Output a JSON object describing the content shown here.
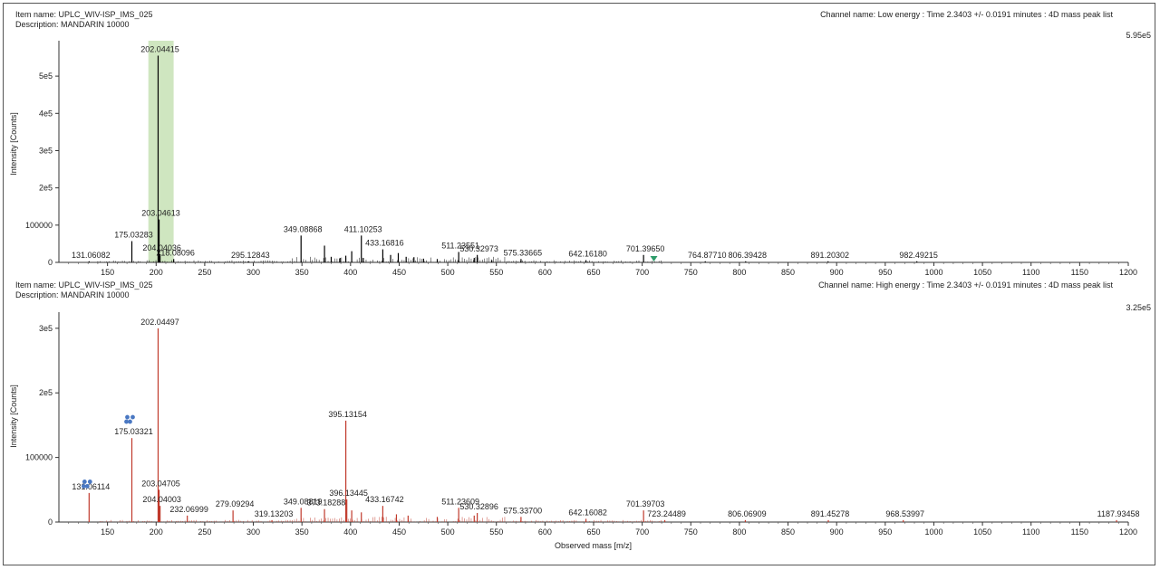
{
  "panels": [
    {
      "item_name": "Item name: UPLC_WIV-ISP_IMS_025",
      "description": "Description: MANDARIN 10000",
      "channel": "Channel name: Low energy : Time 2.3403 +/- 0.0191 minutes : 4D mass peak list",
      "scale": "5.95e5",
      "ylabel": "Intensity [Counts]"
    },
    {
      "item_name": "Item name: UPLC_WIV-ISP_IMS_025",
      "description": "Description: MANDARIN 10000",
      "channel": "Channel name: High energy : Time 2.3403 +/- 0.0191 minutes : 4D mass peak list",
      "scale": "3.25e5",
      "ylabel": "Intensity [Counts]",
      "xlabel": "Observed mass [m/z]"
    }
  ],
  "chart_data": [
    {
      "type": "bar",
      "channel": "Low energy",
      "color": "#000000",
      "xlim": [
        100,
        1200
      ],
      "ylim": [
        0,
        595000
      ],
      "x_ticks": [
        150,
        200,
        250,
        300,
        350,
        400,
        450,
        500,
        550,
        600,
        650,
        700,
        750,
        800,
        850,
        900,
        950,
        1000,
        1050,
        1100,
        1150,
        1200
      ],
      "y_ticks": [
        {
          "value": 0,
          "label": "0"
        },
        {
          "value": 100000,
          "label": "100000"
        },
        {
          "value": 200000,
          "label": "2e5"
        },
        {
          "value": 300000,
          "label": "3e5"
        },
        {
          "value": 400000,
          "label": "4e5"
        },
        {
          "value": 500000,
          "label": "5e5"
        }
      ],
      "highlight_range": [
        192,
        218
      ],
      "highlight_color": "#cfe6c0",
      "marker": {
        "x": 712,
        "color": "#2e9c6a"
      },
      "peaks": [
        {
          "x": 131.06082,
          "y": 3000,
          "label": "131.06082"
        },
        {
          "x": 175.03283,
          "y": 57000,
          "label": "175.03283"
        },
        {
          "x": 202.04415,
          "y": 555000,
          "label": "202.04415"
        },
        {
          "x": 203.04613,
          "y": 115000,
          "label": "203.04613"
        },
        {
          "x": 204.04036,
          "y": 22000,
          "label": "204.04036"
        },
        {
          "x": 218.08096,
          "y": 9000,
          "label": "218.08096"
        },
        {
          "x": 295.12843,
          "y": 3000,
          "label": "295.12843"
        },
        {
          "x": 349.08868,
          "y": 72000,
          "label": "349.08868"
        },
        {
          "x": 373.2,
          "y": 45000
        },
        {
          "x": 380.1,
          "y": 15000
        },
        {
          "x": 389.2,
          "y": 12000
        },
        {
          "x": 395.1,
          "y": 18000
        },
        {
          "x": 401.2,
          "y": 30000
        },
        {
          "x": 411.10253,
          "y": 72000,
          "label": "411.10253"
        },
        {
          "x": 413.1,
          "y": 12000
        },
        {
          "x": 433.16816,
          "y": 35000,
          "label": "433.16816"
        },
        {
          "x": 441.2,
          "y": 20000
        },
        {
          "x": 449.1,
          "y": 25000
        },
        {
          "x": 457.2,
          "y": 15000
        },
        {
          "x": 465.2,
          "y": 14000
        },
        {
          "x": 475.1,
          "y": 10000
        },
        {
          "x": 489.2,
          "y": 9000
        },
        {
          "x": 511.23551,
          "y": 28000,
          "label": "511.23551"
        },
        {
          "x": 527.2,
          "y": 12000
        },
        {
          "x": 530.32973,
          "y": 20000,
          "label": "530.32973"
        },
        {
          "x": 545.3,
          "y": 6000
        },
        {
          "x": 575.33665,
          "y": 9000,
          "label": "575.33665"
        },
        {
          "x": 642.1618,
          "y": 6000,
          "label": "642.16180"
        },
        {
          "x": 701.3965,
          "y": 20000,
          "label": "701.39650"
        },
        {
          "x": 764.8771,
          "y": 3000,
          "label": "764.87710"
        },
        {
          "x": 806.39428,
          "y": 3000,
          "label": "806.39428"
        },
        {
          "x": 891.20302,
          "y": 3000,
          "label": "891.20302"
        },
        {
          "x": 982.49215,
          "y": 3000,
          "label": "982.49215"
        }
      ]
    },
    {
      "type": "bar",
      "channel": "High energy",
      "color": "#c0392b",
      "xlim": [
        100,
        1200
      ],
      "ylim": [
        0,
        325000
      ],
      "x_ticks": [
        150,
        200,
        250,
        300,
        350,
        400,
        450,
        500,
        550,
        600,
        650,
        700,
        750,
        800,
        850,
        900,
        950,
        1000,
        1050,
        1100,
        1150,
        1200
      ],
      "y_ticks": [
        {
          "value": 0,
          "label": "0"
        },
        {
          "value": 100000,
          "label": "100000"
        },
        {
          "value": 200000,
          "label": "2e5"
        },
        {
          "value": 300000,
          "label": "3e5"
        }
      ],
      "xlabel": "Observed mass [m/z]",
      "cluster_icons": [
        {
          "x": 131.06114,
          "y": 40000
        },
        {
          "x": 175.03321,
          "y": 140000
        }
      ],
      "cluster_color": "#4a78c2",
      "peaks": [
        {
          "x": 131.06114,
          "y": 45000,
          "label": "131.06114"
        },
        {
          "x": 175.03321,
          "y": 130000,
          "label": "175.03321"
        },
        {
          "x": 202.04497,
          "y": 300000,
          "label": "202.04497"
        },
        {
          "x": 203.04705,
          "y": 50000,
          "label": "203.04705"
        },
        {
          "x": 204.04003,
          "y": 25000,
          "label": "204.04003"
        },
        {
          "x": 232.06999,
          "y": 10000,
          "label": "232.06999"
        },
        {
          "x": 279.09294,
          "y": 18000,
          "label": "279.09294"
        },
        {
          "x": 319.13203,
          "y": 3000,
          "label": "319.13203"
        },
        {
          "x": 349.08819,
          "y": 22000,
          "label": "349.08819"
        },
        {
          "x": 373.18288,
          "y": 20000,
          "label": "373.18288"
        },
        {
          "x": 395.13154,
          "y": 157000,
          "label": "395.13154"
        },
        {
          "x": 396.13445,
          "y": 35000,
          "label": "396.13445"
        },
        {
          "x": 401.2,
          "y": 18000
        },
        {
          "x": 411.1,
          "y": 15000
        },
        {
          "x": 433.16742,
          "y": 25000,
          "label": "433.16742"
        },
        {
          "x": 447.2,
          "y": 12000
        },
        {
          "x": 459.2,
          "y": 10000
        },
        {
          "x": 489.2,
          "y": 8000
        },
        {
          "x": 511.23609,
          "y": 22000,
          "label": "511.23609"
        },
        {
          "x": 527.2,
          "y": 10000
        },
        {
          "x": 530.32896,
          "y": 14000,
          "label": "530.32896"
        },
        {
          "x": 575.337,
          "y": 8000,
          "label": "575.33700"
        },
        {
          "x": 642.16082,
          "y": 5000,
          "label": "642.16082"
        },
        {
          "x": 701.39703,
          "y": 18000,
          "label": "701.39703"
        },
        {
          "x": 723.24489,
          "y": 3000,
          "label": "723.24489"
        },
        {
          "x": 806.06909,
          "y": 3000,
          "label": "806.06909"
        },
        {
          "x": 891.45278,
          "y": 3000,
          "label": "891.45278"
        },
        {
          "x": 968.53997,
          "y": 3000,
          "label": "968.53997"
        },
        {
          "x": 1187.93458,
          "y": 3000,
          "label": "1187.93458"
        }
      ]
    }
  ]
}
